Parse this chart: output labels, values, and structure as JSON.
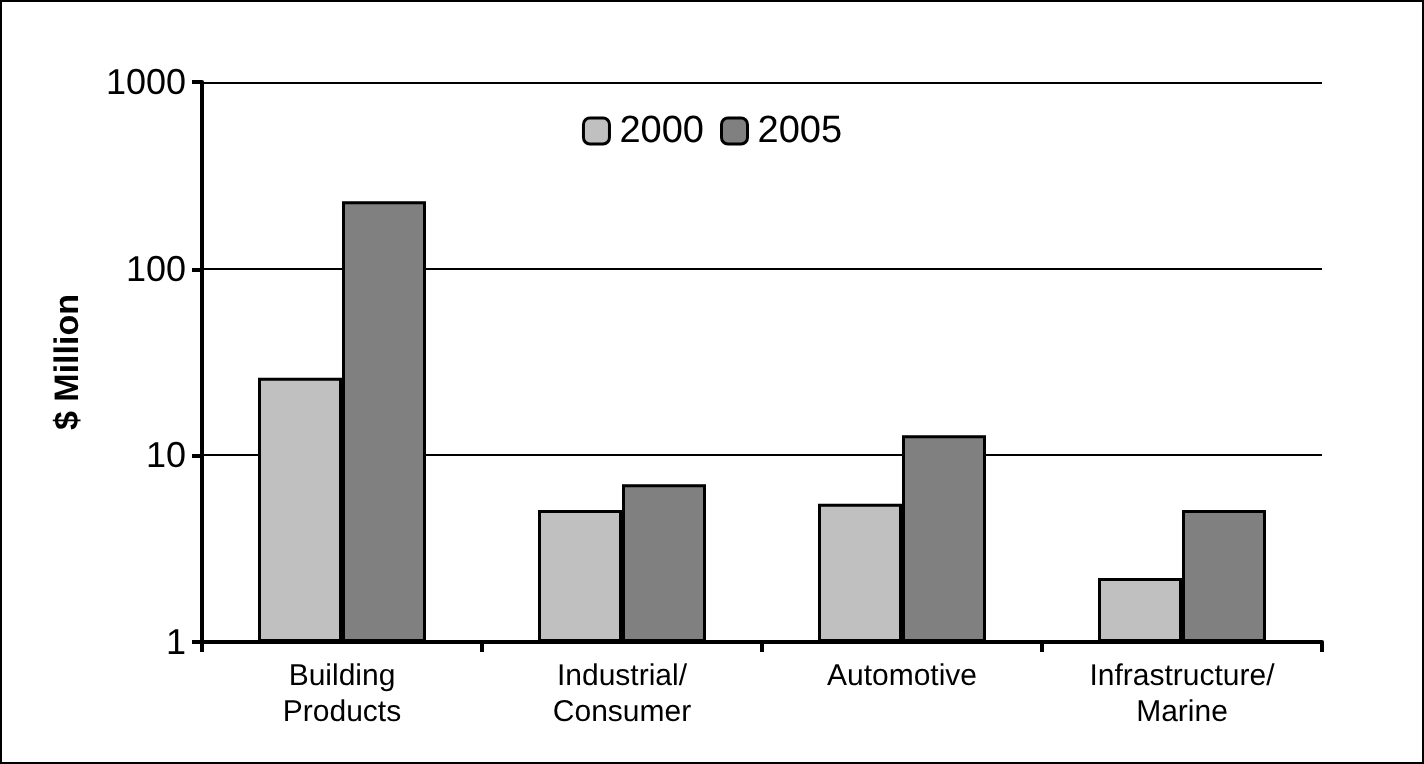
{
  "chart_data": {
    "type": "bar",
    "ylabel": "$ Million",
    "categories": [
      "Building\nProducts",
      "Industrial/\nConsumer",
      "Automotive",
      "Infrastructure/\nMarine"
    ],
    "series": [
      {
        "name": "2000",
        "color": "#c0c0c0",
        "values": [
          26,
          5.1,
          5.5,
          2.2
        ]
      },
      {
        "name": "2005",
        "color": "#808080",
        "values": [
          230,
          7,
          12.8,
          5.1
        ]
      }
    ],
    "log": "y",
    "ylim": [
      1,
      1000
    ],
    "yticks": [
      1,
      10,
      100,
      1000
    ],
    "grid": "y",
    "legend": "top"
  }
}
